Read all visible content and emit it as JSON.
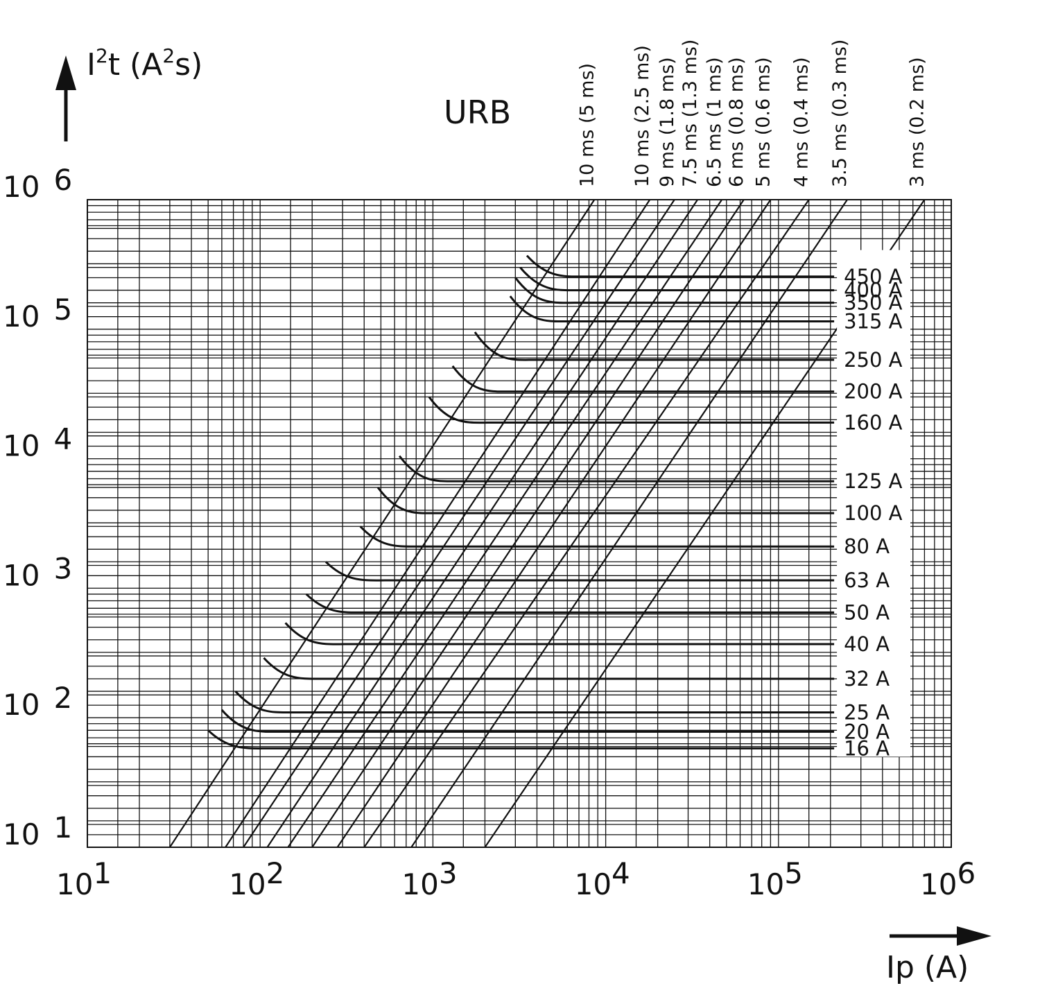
{
  "chart_data": {
    "type": "line",
    "title": "URB",
    "ylabel": {
      "base": "I",
      "sup": "2",
      "rest": "t (A",
      "sup2": "2",
      "end": "s)"
    },
    "xlabel": "Ip (A)",
    "log_x": true,
    "log_y": true,
    "xlim": [
      10,
      1000000
    ],
    "ylim": [
      10,
      1000000
    ],
    "x_ticks": [
      {
        "base": "10",
        "exp": "1"
      },
      {
        "base": "10",
        "exp": "2"
      },
      {
        "base": "10",
        "exp": "3"
      },
      {
        "base": "10",
        "exp": "4"
      },
      {
        "base": "10",
        "exp": "5"
      },
      {
        "base": "10",
        "exp": "6"
      }
    ],
    "y_ticks": [
      {
        "base": "10",
        "exp": "1"
      },
      {
        "base": "10",
        "exp": "2"
      },
      {
        "base": "10",
        "exp": "3"
      },
      {
        "base": "10",
        "exp": "4"
      },
      {
        "base": "10",
        "exp": "5"
      },
      {
        "base": "10",
        "exp": "6"
      }
    ],
    "grid": true,
    "time_lines": [
      {
        "label": "10 ms (5 ms)",
        "points": [
          [
            30,
            10
          ],
          [
            8600,
            1000000
          ]
        ]
      },
      {
        "label": "10 ms (2.5 ms)",
        "points": [
          [
            63,
            10
          ],
          [
            18000,
            1000000
          ]
        ]
      },
      {
        "label": "9 ms (1.8 ms)",
        "points": [
          [
            80,
            10
          ],
          [
            25000,
            1000000
          ]
        ]
      },
      {
        "label": "7.5 ms (1.3 ms)",
        "points": [
          [
            110,
            10
          ],
          [
            34000,
            1000000
          ]
        ]
      },
      {
        "label": "6.5 ms (1 ms)",
        "points": [
          [
            145,
            10
          ],
          [
            47000,
            1000000
          ]
        ]
      },
      {
        "label": "6 ms (0.8 ms)",
        "points": [
          [
            200,
            10
          ],
          [
            63000,
            1000000
          ]
        ]
      },
      {
        "label": "5 ms (0.6 ms)",
        "points": [
          [
            280,
            10
          ],
          [
            90000,
            1000000
          ]
        ]
      },
      {
        "label": "4 ms (0.4 ms)",
        "points": [
          [
            400,
            10
          ],
          [
            150000,
            1000000
          ]
        ]
      },
      {
        "label": "3.5 ms (0.3 ms)",
        "points": [
          [
            750,
            10
          ],
          [
            250000,
            1000000
          ]
        ]
      },
      {
        "label": "3 ms (0.2 ms)",
        "points": [
          [
            2000,
            10
          ],
          [
            700000,
            1000000
          ]
        ]
      }
    ],
    "series": [
      {
        "name": "16 A",
        "knee_x": 50,
        "knee_y": 80,
        "plateau_y": 58
      },
      {
        "name": "20 A",
        "knee_x": 60,
        "knee_y": 115,
        "plateau_y": 78
      },
      {
        "name": "25 A",
        "knee_x": 72,
        "knee_y": 160,
        "plateau_y": 110
      },
      {
        "name": "32 A",
        "knee_x": 105,
        "knee_y": 290,
        "plateau_y": 200
      },
      {
        "name": "40 A",
        "knee_x": 140,
        "knee_y": 540,
        "plateau_y": 370
      },
      {
        "name": "50 A",
        "knee_x": 185,
        "knee_y": 900,
        "plateau_y": 650
      },
      {
        "name": "63 A",
        "knee_x": 240,
        "knee_y": 1600,
        "plateau_y": 1150
      },
      {
        "name": "80 A",
        "knee_x": 380,
        "knee_y": 3000,
        "plateau_y": 2100
      },
      {
        "name": "100 A",
        "knee_x": 480,
        "knee_y": 6000,
        "plateau_y": 3800
      },
      {
        "name": "125 A",
        "knee_x": 640,
        "knee_y": 10500,
        "plateau_y": 6700
      },
      {
        "name": "160 A",
        "knee_x": 950,
        "knee_y": 30000,
        "plateau_y": 19000
      },
      {
        "name": "200 A",
        "knee_x": 1300,
        "knee_y": 52000,
        "plateau_y": 33000
      },
      {
        "name": "250 A",
        "knee_x": 1750,
        "knee_y": 95000,
        "plateau_y": 58000
      },
      {
        "name": "315 A",
        "knee_x": 2800,
        "knee_y": 180000,
        "plateau_y": 115000
      },
      {
        "name": "350 A",
        "knee_x": 3000,
        "knee_y": 250000,
        "plateau_y": 160000
      },
      {
        "name": "400 A",
        "knee_x": 3200,
        "knee_y": 300000,
        "plateau_y": 200000
      },
      {
        "name": "450 A",
        "knee_x": 3500,
        "knee_y": 370000,
        "plateau_y": 255000
      }
    ],
    "series_end_x": 210000
  }
}
